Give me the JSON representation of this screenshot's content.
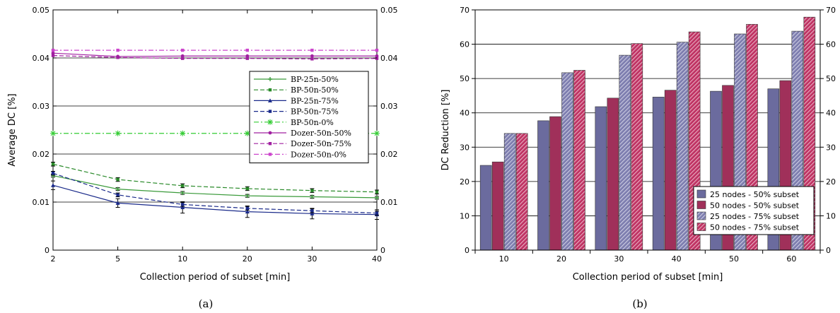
{
  "chart_data": [
    {
      "type": "line",
      "panel_label": "(a)",
      "xlabel": "Collection period of subset [min]",
      "ylabel": "Average DC [%]",
      "x": [
        2,
        5,
        10,
        20,
        30,
        40
      ],
      "x_ticks": [
        "2",
        "5",
        "10",
        "20",
        "30",
        "40"
      ],
      "ylim": [
        0,
        0.05
      ],
      "y_ticks": [
        "0",
        "0.01",
        "0.02",
        "0.03",
        "0.04",
        "0.05"
      ],
      "grid": "horizontal",
      "legend_position": "upper-right",
      "series": [
        {
          "name": "BP-25n-50%",
          "color": "#3a9a3a",
          "dash": "solid",
          "marker": "plus",
          "values": [
            0.0155,
            0.0127,
            0.0119,
            0.0113,
            0.0111,
            0.0109
          ],
          "err": [
            0.0003,
            0.0003,
            0.0003,
            0.0003,
            0.0003,
            0.0003
          ]
        },
        {
          "name": "BP-50n-50%",
          "color": "#2a8a2a",
          "dash": "dashed",
          "marker": "square",
          "values": [
            0.0179,
            0.0147,
            0.0134,
            0.0128,
            0.0124,
            0.0121
          ],
          "err": [
            0.0004,
            0.0004,
            0.0004,
            0.0004,
            0.0004,
            0.0004
          ]
        },
        {
          "name": "BP-25n-75%",
          "color": "#1a2a8a",
          "dash": "solid",
          "marker": "triangle",
          "values": [
            0.0135,
            0.0098,
            0.0089,
            0.008,
            0.0076,
            0.0074
          ],
          "err": [
            0.0009,
            0.0009,
            0.0012,
            0.0012,
            0.0011,
            0.001
          ]
        },
        {
          "name": "BP-50n-75%",
          "color": "#1a2a8a",
          "dash": "dashed",
          "marker": "square",
          "values": [
            0.016,
            0.0115,
            0.0095,
            0.0087,
            0.0082,
            0.0077
          ],
          "err": [
            0.0004,
            0.0004,
            0.0004,
            0.0004,
            0.0004,
            0.0004
          ]
        },
        {
          "name": "BP-50n-0%",
          "color": "#33cc33",
          "dash": "dashdot",
          "marker": "star",
          "values": [
            0.0243,
            0.0243,
            0.0243,
            0.0243,
            0.0243,
            0.0243
          ],
          "err": []
        },
        {
          "name": "Dozer-50n-50%",
          "color": "#a020a0",
          "dash": "solid",
          "marker": "circle",
          "values": [
            0.041,
            0.0403,
            0.0404,
            0.0404,
            0.0404,
            0.0404
          ],
          "err": []
        },
        {
          "name": "Dozer-50n-75%",
          "color": "#a020a0",
          "dash": "dashed",
          "marker": "square",
          "values": [
            0.0405,
            0.0401,
            0.0399,
            0.0399,
            0.0398,
            0.0399
          ],
          "err": []
        },
        {
          "name": "Dozer-50n-0%",
          "color": "#cc44cc",
          "dash": "dashdot",
          "marker": "square",
          "values": [
            0.0416,
            0.0416,
            0.0416,
            0.0416,
            0.0416,
            0.0416
          ],
          "err": []
        }
      ]
    },
    {
      "type": "bar",
      "panel_label": "(b)",
      "xlabel": "Collection period of subset [min]",
      "ylabel": "DC Reduction [%]",
      "categories": [
        "10",
        "20",
        "30",
        "40",
        "50",
        "60"
      ],
      "ylim": [
        0,
        70
      ],
      "y_ticks": [
        "0",
        "10",
        "20",
        "30",
        "40",
        "50",
        "60",
        "70"
      ],
      "grid": "horizontal",
      "legend_position": "lower-right",
      "series": [
        {
          "name": "25 nodes - 50% subset",
          "color": "#6b6b9e",
          "hatch": false,
          "values": [
            24.7,
            37.7,
            41.8,
            44.6,
            46.3,
            47.0
          ]
        },
        {
          "name": "50 nodes - 50% subset",
          "color": "#a0305a",
          "hatch": false,
          "values": [
            25.7,
            38.9,
            44.3,
            46.6,
            48.0,
            49.4
          ]
        },
        {
          "name": "25 nodes - 75% subset",
          "color": "#6b6b9e",
          "hatch": true,
          "values": [
            34.0,
            51.7,
            56.8,
            60.6,
            63.0,
            63.8
          ]
        },
        {
          "name": "50 nodes - 75% subset",
          "color": "#c03565",
          "hatch": true,
          "values": [
            34.0,
            52.4,
            60.2,
            63.6,
            65.8,
            67.9
          ]
        }
      ]
    }
  ]
}
